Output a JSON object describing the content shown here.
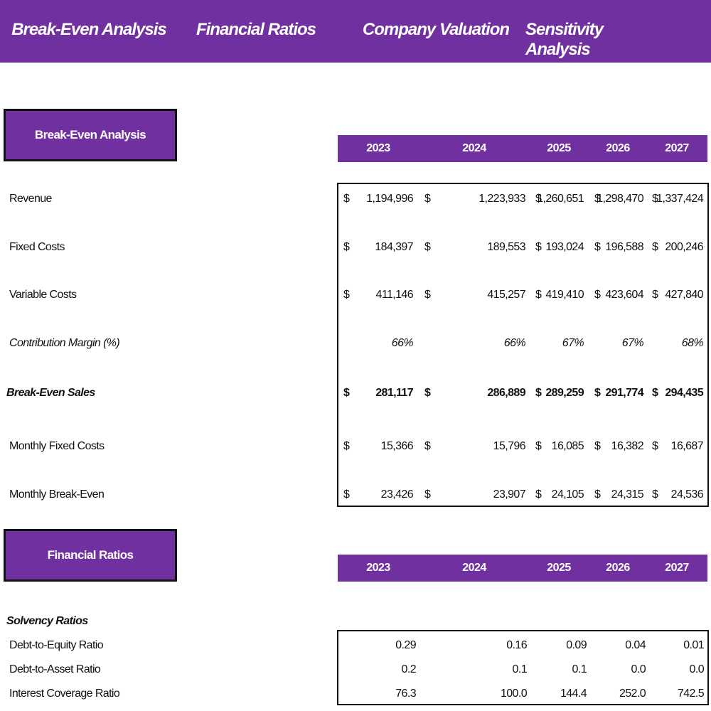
{
  "nav": [
    "Break-Even Analysis",
    "Financial Ratios",
    "Company Valuation",
    "Sensitivity Analysis"
  ],
  "currency": "$",
  "break_even": {
    "title": "Break-Even Analysis",
    "years": [
      "2023",
      "2024",
      "2025",
      "2026",
      "2027"
    ],
    "rows": [
      {
        "label": "Revenue",
        "values": [
          "1,194,996",
          "1,223,933",
          "1,260,651",
          "1,298,470",
          "1,337,424"
        ]
      },
      {
        "label": "Fixed Costs",
        "values": [
          "184,397",
          "189,553",
          "193,024",
          "196,588",
          "200,246"
        ]
      },
      {
        "label": "Variable Costs",
        "values": [
          "411,146",
          "415,257",
          "419,410",
          "423,604",
          "427,840"
        ]
      },
      {
        "label": "Contribution Margin (%)",
        "values": [
          "66%",
          "66%",
          "67%",
          "67%",
          "68%"
        ]
      },
      {
        "label": "Break-Even Sales",
        "values": [
          "281,117",
          "286,889",
          "289,259",
          "291,774",
          "294,435"
        ]
      },
      {
        "label": "Monthly Fixed Costs",
        "values": [
          "15,366",
          "15,796",
          "16,085",
          "16,382",
          "16,687"
        ]
      },
      {
        "label": "Monthly Break-Even",
        "values": [
          "23,426",
          "23,907",
          "24,105",
          "24,315",
          "24,536"
        ]
      }
    ]
  },
  "financial_ratios": {
    "title": "Financial Ratios",
    "years": [
      "2023",
      "2024",
      "2025",
      "2026",
      "2027"
    ],
    "group": "Solvency Ratios",
    "rows": [
      {
        "label": "Debt-to-Equity Ratio",
        "values": [
          "0.29",
          "0.16",
          "0.09",
          "0.04",
          "0.01"
        ]
      },
      {
        "label": "Debt-to-Asset Ratio",
        "values": [
          "0.2",
          "0.1",
          "0.1",
          "0.0",
          "0.0"
        ]
      },
      {
        "label": "Interest Coverage Ratio",
        "values": [
          "76.3",
          "100.0",
          "144.4",
          "252.0",
          "742.5"
        ]
      }
    ]
  }
}
